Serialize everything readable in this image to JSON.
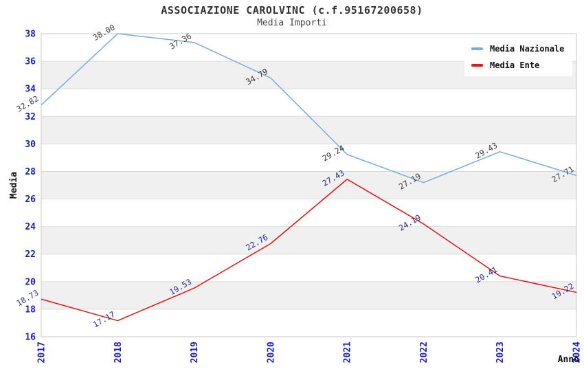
{
  "header": {
    "title": "ASSOCIAZIONE CAROLVINC (c.f.95167200658)",
    "subtitle": "Media Importi"
  },
  "chart_data": {
    "type": "line",
    "x": [
      "2017",
      "2018",
      "2019",
      "2020",
      "2021",
      "2022",
      "2023",
      "2024"
    ],
    "series": [
      {
        "name": "Media Nazionale",
        "color": "#78aae6",
        "label_color": "#3a3a3a",
        "values": [
          32.82,
          38.0,
          37.36,
          34.79,
          29.24,
          27.19,
          29.43,
          27.71
        ]
      },
      {
        "name": "Media Ente",
        "color": "#ee1111",
        "label_color": "#28288f",
        "values": [
          18.73,
          17.17,
          19.53,
          22.76,
          27.43,
          24.19,
          20.41,
          19.22
        ]
      }
    ],
    "xlabel": "Anno",
    "ylabel": "Media",
    "ylim": [
      16,
      38
    ],
    "ytick_step": 2,
    "grid": true,
    "legend_position": "top-right",
    "styles": {
      "tick_color": "#1a1ad6",
      "band_colors": [
        "#ffffff",
        "#f0f0f0"
      ],
      "grid_color": "#dcdcdc",
      "border_color": "#c8c8c8",
      "axis_label_color": "#111111"
    }
  }
}
